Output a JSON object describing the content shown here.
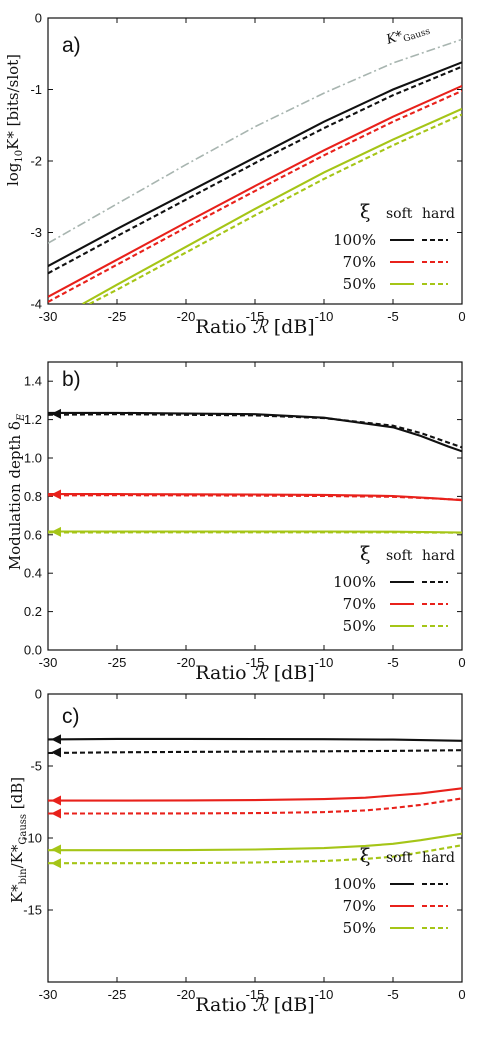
{
  "chart_data": [
    {
      "type": "line",
      "panel_label": "a)",
      "xlabel_text": "Ratio ",
      "xlabel_symbol": "ℛ",
      "xlabel_unit": " [dB]",
      "ylabel_prefix": "log",
      "ylabel_sub": "10",
      "ylabel_main": "K* [bits/slot]",
      "xlim": [
        -30,
        0
      ],
      "ylim": [
        -4,
        0
      ],
      "xticks": [
        -30,
        -25,
        -20,
        -15,
        -10,
        -5,
        0
      ],
      "xtick_labels": [
        "-30",
        "-25",
        "-20",
        "-15",
        "-10",
        "-5",
        "0"
      ],
      "yticks": [
        -4,
        -3,
        -2,
        -1,
        0
      ],
      "ytick_labels": [
        "-4",
        "-3",
        "-2",
        "-1",
        "0"
      ],
      "annotation": {
        "text": "K*",
        "sub": "Gauss"
      },
      "legend": {
        "symbol": "ξ",
        "headers": [
          "soft",
          "hard"
        ],
        "rows": [
          "100%",
          "70%",
          "50%"
        ]
      },
      "colors": {
        "100%": "#111111",
        "70%": "#e8211b",
        "50%": "#a5c517",
        "gauss": "#a8b5b0"
      },
      "series": [
        {
          "group": "gauss",
          "style": "dashdot",
          "x": [
            -30,
            -25,
            -20,
            -15,
            -10,
            -5,
            0
          ],
          "y": [
            -3.15,
            -2.6,
            -2.05,
            -1.52,
            -1.05,
            -0.63,
            -0.3
          ]
        },
        {
          "group": "100%",
          "style": "solid",
          "x": [
            -30,
            -25,
            -20,
            -15,
            -10,
            -5,
            0
          ],
          "y": [
            -3.47,
            -2.95,
            -2.45,
            -1.95,
            -1.45,
            -1.0,
            -0.62
          ]
        },
        {
          "group": "100%",
          "style": "dashed",
          "x": [
            -30,
            -25,
            -20,
            -15,
            -10,
            -5,
            0
          ],
          "y": [
            -3.57,
            -3.05,
            -2.54,
            -2.03,
            -1.54,
            -1.08,
            -0.68
          ]
        },
        {
          "group": "70%",
          "style": "solid",
          "x": [
            -30,
            -25,
            -20,
            -15,
            -10,
            -5,
            0
          ],
          "y": [
            -3.9,
            -3.38,
            -2.86,
            -2.35,
            -1.85,
            -1.38,
            -0.95
          ]
        },
        {
          "group": "70%",
          "style": "dashed",
          "x": [
            -30,
            -25,
            -20,
            -15,
            -10,
            -5,
            0
          ],
          "y": [
            -3.97,
            -3.45,
            -2.93,
            -2.42,
            -1.92,
            -1.45,
            -1.02
          ]
        },
        {
          "group": "50%",
          "style": "solid",
          "x": [
            -27.5,
            -25,
            -20,
            -15,
            -10,
            -5,
            0
          ],
          "y": [
            -4.0,
            -3.73,
            -3.2,
            -2.67,
            -2.16,
            -1.7,
            -1.27
          ]
        },
        {
          "group": "50%",
          "style": "dashed",
          "x": [
            -27,
            -25,
            -20,
            -15,
            -10,
            -5,
            0
          ],
          "y": [
            -4.0,
            -3.8,
            -3.28,
            -2.76,
            -2.25,
            -1.78,
            -1.35
          ]
        }
      ]
    },
    {
      "type": "line",
      "panel_label": "b)",
      "xlabel_text": "Ratio ",
      "xlabel_symbol": "ℛ",
      "xlabel_unit": " [dB]",
      "ylabel_main": "Modulation depth δ",
      "ylabel_sub": "E",
      "xlim": [
        -30,
        0
      ],
      "ylim": [
        0,
        1.5
      ],
      "xticks": [
        -30,
        -25,
        -20,
        -15,
        -10,
        -5,
        0
      ],
      "xtick_labels": [
        "-30",
        "-25",
        "-20",
        "-15",
        "-10",
        "-5",
        "0"
      ],
      "yticks": [
        0,
        0.2,
        0.4,
        0.6,
        0.8,
        1.0,
        1.2,
        1.4
      ],
      "ytick_labels": [
        "0.0",
        "0.2",
        "0.4",
        "0.6",
        "0.8",
        "1.0",
        "1.2",
        "1.4"
      ],
      "legend": {
        "symbol": "ξ",
        "headers": [
          "soft",
          "hard"
        ],
        "rows": [
          "100%",
          "70%",
          "50%"
        ]
      },
      "colors": {
        "100%": "#111111",
        "70%": "#e8211b",
        "50%": "#a5c517"
      },
      "arrow_values": [
        1.23,
        0.81,
        0.615
      ],
      "series": [
        {
          "group": "100%",
          "style": "solid",
          "x": [
            -30,
            -25,
            -20,
            -15,
            -10,
            -5,
            -3,
            -1,
            0
          ],
          "y": [
            1.235,
            1.235,
            1.232,
            1.228,
            1.21,
            1.16,
            1.115,
            1.06,
            1.035
          ]
        },
        {
          "group": "100%",
          "style": "dashed",
          "x": [
            -30,
            -25,
            -20,
            -15,
            -10,
            -5,
            -3,
            -1,
            0
          ],
          "y": [
            1.225,
            1.228,
            1.225,
            1.222,
            1.208,
            1.168,
            1.13,
            1.08,
            1.055
          ]
        },
        {
          "group": "70%",
          "style": "solid",
          "x": [
            -30,
            -25,
            -20,
            -15,
            -10,
            -5,
            -2,
            0
          ],
          "y": [
            0.812,
            0.812,
            0.811,
            0.81,
            0.808,
            0.802,
            0.79,
            0.78
          ]
        },
        {
          "group": "70%",
          "style": "dashed",
          "x": [
            -30,
            -25,
            -20,
            -15,
            -10,
            -5,
            -2,
            0
          ],
          "y": [
            0.805,
            0.806,
            0.805,
            0.804,
            0.802,
            0.798,
            0.789,
            0.782
          ]
        },
        {
          "group": "50%",
          "style": "solid",
          "x": [
            -30,
            -20,
            -10,
            -5,
            0
          ],
          "y": [
            0.617,
            0.617,
            0.617,
            0.616,
            0.612
          ]
        },
        {
          "group": "50%",
          "style": "dashed",
          "x": [
            -30,
            -20,
            -10,
            -5,
            0
          ],
          "y": [
            0.612,
            0.613,
            0.613,
            0.613,
            0.611
          ]
        }
      ]
    },
    {
      "type": "line",
      "panel_label": "c)",
      "xlabel_text": "Ratio ",
      "xlabel_symbol": "ℛ",
      "xlabel_unit": " [dB]",
      "ylabel_main": "K*bin/K*Gauss [dB]",
      "ylabel_parts": [
        "K*",
        "bin",
        "/K*",
        "Gauss",
        " [dB]"
      ],
      "xlim": [
        -30,
        0
      ],
      "ylim": [
        -20,
        0
      ],
      "xticks": [
        -30,
        -25,
        -20,
        -15,
        -10,
        -5,
        0
      ],
      "xtick_labels": [
        "-30",
        "-25",
        "-20",
        "-15",
        "-10",
        "-5",
        "0"
      ],
      "yticks": [
        0,
        -5,
        -10,
        -15
      ],
      "ytick_labels": [
        "0",
        "-5",
        "-10",
        "-15"
      ],
      "legend": {
        "symbol": "ξ",
        "headers": [
          "soft",
          "hard"
        ],
        "rows": [
          "100%",
          "70%",
          "50%"
        ]
      },
      "colors": {
        "100%": "#111111",
        "70%": "#e8211b",
        "50%": "#a5c517"
      },
      "arrow_values": [
        -3.15,
        -4.05,
        -7.4,
        -8.3,
        -10.8,
        -11.75
      ],
      "series": [
        {
          "group": "100%",
          "style": "solid",
          "x": [
            -30,
            -25,
            -20,
            -15,
            -10,
            -5,
            0
          ],
          "y": [
            -3.15,
            -3.12,
            -3.12,
            -3.13,
            -3.14,
            -3.17,
            -3.25
          ]
        },
        {
          "group": "100%",
          "style": "dashed",
          "x": [
            -30,
            -25,
            -20,
            -15,
            -10,
            -5,
            0
          ],
          "y": [
            -4.1,
            -4.05,
            -4.02,
            -4.0,
            -3.98,
            -3.95,
            -3.9
          ]
        },
        {
          "group": "70%",
          "style": "solid",
          "x": [
            -30,
            -25,
            -20,
            -15,
            -10,
            -7,
            -5,
            -3,
            0
          ],
          "y": [
            -7.4,
            -7.4,
            -7.39,
            -7.37,
            -7.3,
            -7.2,
            -7.05,
            -6.9,
            -6.55
          ]
        },
        {
          "group": "70%",
          "style": "dashed",
          "x": [
            -30,
            -25,
            -20,
            -15,
            -10,
            -7,
            -5,
            -3,
            0
          ],
          "y": [
            -8.3,
            -8.3,
            -8.29,
            -8.27,
            -8.2,
            -8.08,
            -7.92,
            -7.7,
            -7.25
          ]
        },
        {
          "group": "50%",
          "style": "solid",
          "x": [
            -30,
            -25,
            -20,
            -15,
            -10,
            -7,
            -5,
            -3,
            0
          ],
          "y": [
            -10.85,
            -10.85,
            -10.84,
            -10.8,
            -10.7,
            -10.55,
            -10.4,
            -10.15,
            -9.7
          ]
        },
        {
          "group": "50%",
          "style": "dashed",
          "x": [
            -30,
            -25,
            -20,
            -15,
            -10,
            -7,
            -5,
            -3,
            0
          ],
          "y": [
            -11.75,
            -11.75,
            -11.74,
            -11.7,
            -11.6,
            -11.45,
            -11.3,
            -11.0,
            -10.5
          ]
        }
      ]
    }
  ]
}
